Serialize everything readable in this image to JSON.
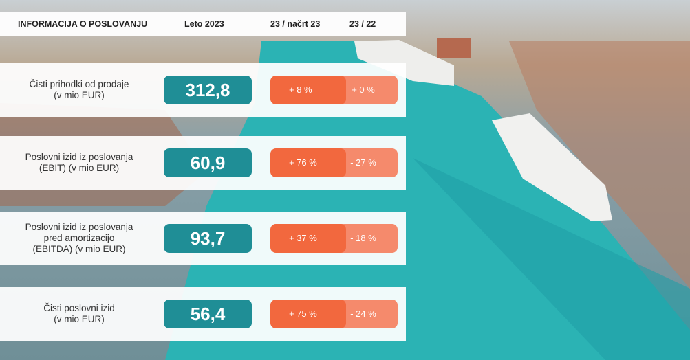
{
  "header": {
    "title": "INFORMACIJA O POSLOVANJU",
    "year": "Leto 2023",
    "col_plan": "23 / načrt 23",
    "col_prev": "23 / 22"
  },
  "rows": [
    {
      "label": [
        "Čisti prihodki od prodaje",
        "(v mio EUR)"
      ],
      "value": "312,8",
      "vs_plan": "+ 8 %",
      "vs_prev": "+ 0 %"
    },
    {
      "label": [
        "Poslovni izid iz poslovanja",
        "(EBIT) (v mio EUR)"
      ],
      "value": "60,9",
      "vs_plan": "+ 76 %",
      "vs_prev": "- 27 %"
    },
    {
      "label": [
        "Poslovni izid iz poslovanja",
        "pred amortizacijo",
        "(EBITDA) (v mio EUR)"
      ],
      "value": "93,7",
      "vs_plan": "+ 37 %",
      "vs_prev": "- 18 %"
    },
    {
      "label": [
        "Čisti poslovni izid",
        "(v mio EUR)"
      ],
      "value": "56,4",
      "vs_plan": "+ 75 %",
      "vs_prev": "- 24 %"
    }
  ]
}
